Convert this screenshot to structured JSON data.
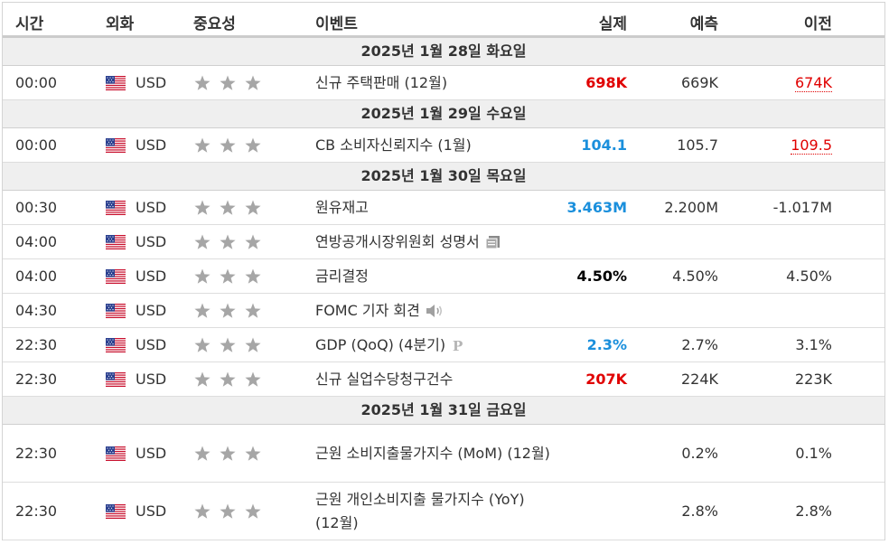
{
  "header": {
    "time": "시간",
    "currency": "외화",
    "importance": "중요성",
    "event": "이벤트",
    "actual": "실제",
    "forecast": "예측",
    "previous": "이전"
  },
  "colors": {
    "positive": "#1a8fdc",
    "negative": "#e00000",
    "neutral": "#000000",
    "date_bg": "#efefef"
  },
  "days": [
    {
      "date": "2025년 1월 28일 화요일",
      "events": [
        {
          "time": "00:00",
          "flag": "us-flag-icon",
          "currency": "USD",
          "stars": 3,
          "event": "신규 주택판매 (12월)",
          "icon": "",
          "actual": "698K",
          "actual_color": "red",
          "forecast": "669K",
          "previous": "674K",
          "previous_revised": true
        }
      ]
    },
    {
      "date": "2025년 1월 29일 수요일",
      "events": [
        {
          "time": "00:00",
          "flag": "us-flag-icon",
          "currency": "USD",
          "stars": 3,
          "event": "CB 소비자신뢰지수 (1월)",
          "icon": "",
          "actual": "104.1",
          "actual_color": "blue",
          "forecast": "105.7",
          "previous": "109.5",
          "previous_revised": true
        }
      ]
    },
    {
      "date": "2025년 1월 30일 목요일",
      "events": [
        {
          "time": "00:30",
          "flag": "us-flag-icon",
          "currency": "USD",
          "stars": 3,
          "event": "원유재고",
          "icon": "",
          "actual": "3.463M",
          "actual_color": "blue",
          "forecast": "2.200M",
          "previous": "-1.017M",
          "previous_revised": false
        },
        {
          "time": "04:00",
          "flag": "us-flag-icon",
          "currency": "USD",
          "stars": 3,
          "event": "연방공개시장위원회 성명서",
          "icon": "document-icon",
          "actual": "",
          "actual_color": "black",
          "forecast": "",
          "previous": "",
          "previous_revised": false
        },
        {
          "time": "04:00",
          "flag": "us-flag-icon",
          "currency": "USD",
          "stars": 3,
          "event": "금리결정",
          "icon": "",
          "actual": "4.50%",
          "actual_color": "black",
          "forecast": "4.50%",
          "previous": "4.50%",
          "previous_revised": false
        },
        {
          "time": "04:30",
          "flag": "us-flag-icon",
          "currency": "USD",
          "stars": 3,
          "event": "FOMC 기자 회견",
          "icon": "speaker-icon",
          "actual": "",
          "actual_color": "black",
          "forecast": "",
          "previous": "",
          "previous_revised": false
        },
        {
          "time": "22:30",
          "flag": "us-flag-icon",
          "currency": "USD",
          "stars": 3,
          "event": "GDP (QoQ) (4분기)",
          "icon": "preliminary-icon",
          "actual": "2.3%",
          "actual_color": "blue",
          "forecast": "2.7%",
          "previous": "3.1%",
          "previous_revised": false
        },
        {
          "time": "22:30",
          "flag": "us-flag-icon",
          "currency": "USD",
          "stars": 3,
          "event": "신규 실업수당청구건수",
          "icon": "",
          "actual": "207K",
          "actual_color": "red",
          "forecast": "224K",
          "previous": "223K",
          "previous_revised": false
        }
      ]
    },
    {
      "date": "2025년 1월 31일 금요일",
      "events": [
        {
          "time": "22:30",
          "flag": "us-flag-icon",
          "currency": "USD",
          "stars": 3,
          "event": "근원 소비지출물가지수 (MoM) (12월)",
          "icon": "",
          "actual": "",
          "actual_color": "black",
          "forecast": "0.2%",
          "previous": "0.1%",
          "previous_revised": false
        },
        {
          "time": "22:30",
          "flag": "us-flag-icon",
          "currency": "USD",
          "stars": 3,
          "event": "근원 개인소비지출 물가지수 (YoY) (12월)",
          "icon": "",
          "actual": "",
          "actual_color": "black",
          "forecast": "2.8%",
          "previous": "2.8%",
          "previous_revised": false
        }
      ]
    }
  ]
}
